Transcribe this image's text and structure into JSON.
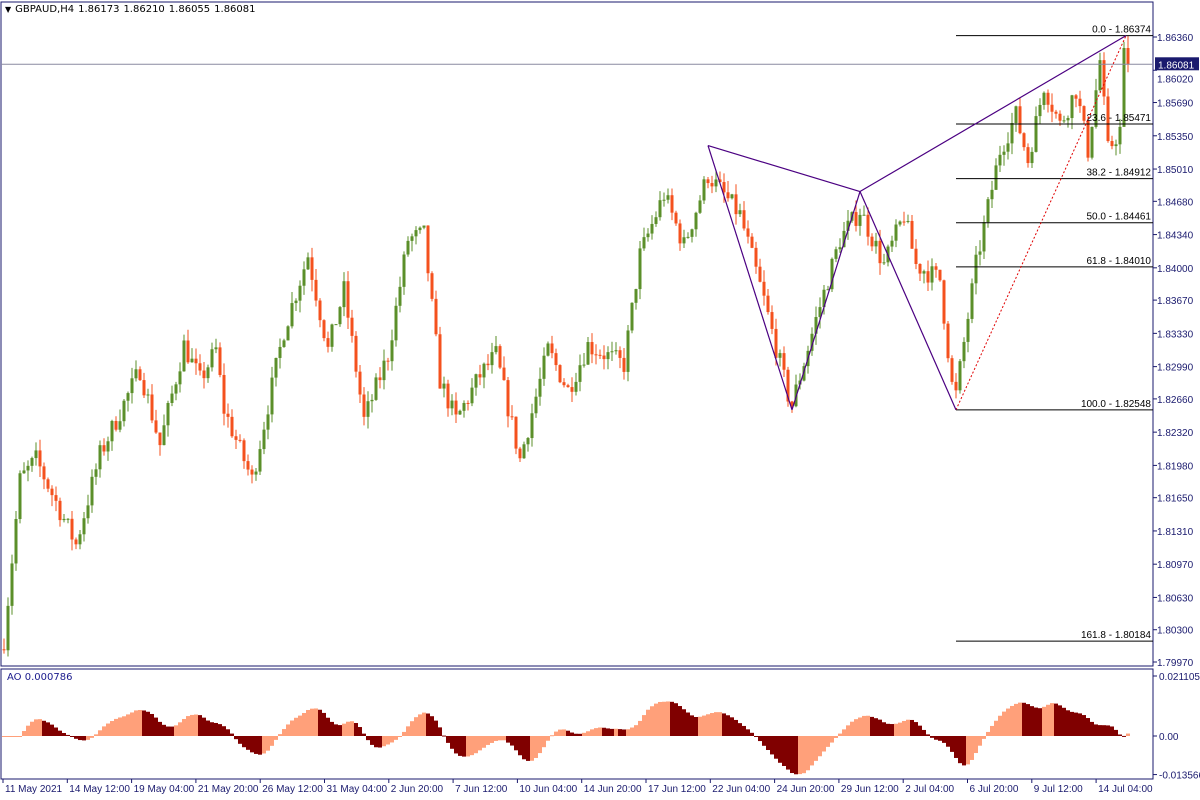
{
  "header": {
    "symbol": "GBPAUD,H4",
    "open": "1.86173",
    "high": "1.86210",
    "low": "1.86055",
    "close": "1.86081"
  },
  "indicator": {
    "label": "AO 0.000786"
  },
  "colors": {
    "bull": "#5b8f2a",
    "bear": "#f4511e",
    "ao_up": "#ffa07a",
    "ao_down": "#800000",
    "zigzag": "#4b0082",
    "fib_trend": "#e00000",
    "axis": "#1a1a6e",
    "current_price_bg": "#1a1a6e"
  },
  "chart_data": {
    "type": "candlestick",
    "timeframe": "H4",
    "y_axis": {
      "range": [
        1.7997,
        1.8636
      ],
      "tick_labels": [
        "1.86360",
        "1.86020",
        "1.85690",
        "1.85350",
        "1.85010",
        "1.84680",
        "1.84340",
        "1.84000",
        "1.83670",
        "1.83330",
        "1.82990",
        "1.82660",
        "1.82320",
        "1.81980",
        "1.81650",
        "1.81310",
        "1.80970",
        "1.80630",
        "1.80300",
        "1.79970"
      ]
    },
    "x_axis": {
      "tick_labels": [
        "11 May 2021",
        "14 May 12:00",
        "19 May 04:00",
        "21 May 20:00",
        "26 May 12:00",
        "31 May 04:00",
        "2 Jun 20:00",
        "7 Jun 12:00",
        "10 Jun 04:00",
        "14 Jun 20:00",
        "17 Jun 12:00",
        "22 Jun 04:00",
        "24 Jun 20:00",
        "29 Jun 12:00",
        "2 Jul 04:00",
        "6 Jul 20:00",
        "9 Jul 12:00",
        "14 Jul 04:00"
      ]
    },
    "current_price": "1.86081",
    "approx_close_path": [
      [
        0,
        1.802
      ],
      [
        4,
        1.8183
      ],
      [
        8,
        1.8204
      ],
      [
        18,
        1.8117
      ],
      [
        24,
        1.8209
      ],
      [
        34,
        1.8296
      ],
      [
        39,
        1.8219
      ],
      [
        45,
        1.8321
      ],
      [
        49,
        1.8285
      ],
      [
        53,
        1.8316
      ],
      [
        55,
        1.8255
      ],
      [
        62,
        1.8183
      ],
      [
        70,
        1.8336
      ],
      [
        76,
        1.8413
      ],
      [
        81,
        1.8316
      ],
      [
        85,
        1.8377
      ],
      [
        90,
        1.8244
      ],
      [
        96,
        1.8311
      ],
      [
        101,
        1.8429
      ],
      [
        105,
        1.8434
      ],
      [
        109,
        1.8285
      ],
      [
        113,
        1.8244
      ],
      [
        119,
        1.829
      ],
      [
        123,
        1.8311
      ],
      [
        129,
        1.8204
      ],
      [
        136,
        1.8316
      ],
      [
        141,
        1.8275
      ],
      [
        146,
        1.8321
      ],
      [
        155,
        1.8301
      ],
      [
        159,
        1.8413
      ],
      [
        165,
        1.8475
      ],
      [
        170,
        1.8423
      ],
      [
        176,
        1.8495
      ],
      [
        184,
        1.8454
      ],
      [
        190,
        1.8367
      ],
      [
        196,
        1.827
      ],
      [
        197,
        1.826
      ],
      [
        203,
        1.8347
      ],
      [
        209,
        1.8429
      ],
      [
        214,
        1.8459
      ],
      [
        220,
        1.8403
      ],
      [
        225,
        1.8454
      ],
      [
        228,
        1.8403
      ],
      [
        234,
        1.8388
      ],
      [
        237,
        1.828
      ],
      [
        238,
        1.827
      ],
      [
        243,
        1.8403
      ],
      [
        249,
        1.852
      ],
      [
        253,
        1.8556
      ],
      [
        256,
        1.851
      ],
      [
        260,
        1.8587
      ],
      [
        264,
        1.8546
      ],
      [
        268,
        1.8582
      ],
      [
        271,
        1.852
      ],
      [
        274,
        1.8612
      ],
      [
        276,
        1.852
      ],
      [
        279,
        1.8541
      ],
      [
        280,
        1.8617
      ],
      [
        281,
        1.8608
      ]
    ],
    "zigzag_points": [
      [
        176,
        1.8525
      ],
      [
        197,
        1.82548
      ],
      [
        214,
        1.8478
      ],
      [
        238,
        1.82548
      ],
      [
        280,
        1.86374
      ]
    ],
    "fibonacci": {
      "levels": [
        {
          "label": "0.0 - 1.86374",
          "price": 1.86374
        },
        {
          "label": "23.6 - 1.85471",
          "price": 1.85471
        },
        {
          "label": "38.2 - 1.84912",
          "price": 1.84912
        },
        {
          "label": "50.0 - 1.84461",
          "price": 1.84461
        },
        {
          "label": "61.8 - 1.84010",
          "price": 1.8401
        },
        {
          "label": "100.0 - 1.82548",
          "price": 1.82548
        },
        {
          "label": "161.8 - 1.80184",
          "price": 1.80184
        }
      ]
    },
    "ao": {
      "name": "AO",
      "range": [
        -0.013566,
        0.021105
      ],
      "tick_labels": [
        "0.021105",
        "0.00",
        "-0.013566"
      ]
    }
  }
}
